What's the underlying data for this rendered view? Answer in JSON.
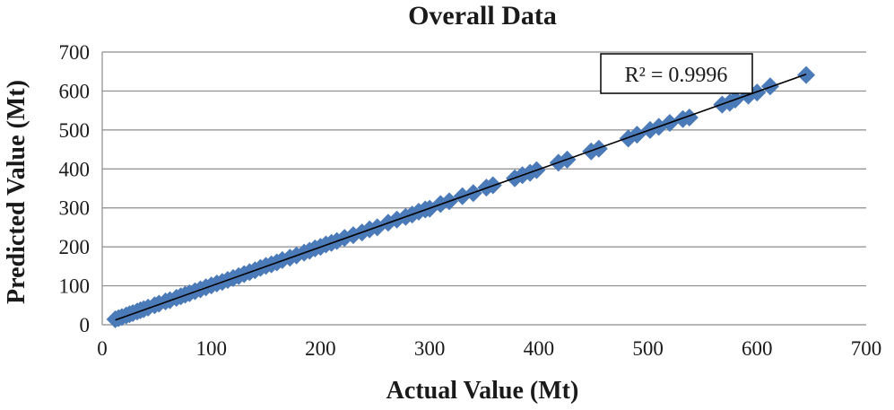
{
  "chart_data": {
    "type": "scatter",
    "title": "Overall Data",
    "xlabel": "Actual Value (Mt)",
    "ylabel": "Predicted Value (Mt)",
    "xlim": [
      0,
      700
    ],
    "ylim": [
      0,
      700
    ],
    "x_ticks": [
      0,
      100,
      200,
      300,
      400,
      500,
      600,
      700
    ],
    "y_ticks": [
      0,
      100,
      200,
      300,
      400,
      500,
      600,
      700
    ],
    "grid": "horizontal",
    "annotation": "R² = 0.9996",
    "trendline": {
      "x": [
        12,
        645
      ],
      "y": [
        12,
        643
      ]
    },
    "marker_color": "#4a7ab8",
    "series": [
      {
        "x": [
          12,
          15,
          18,
          22,
          25,
          28,
          32,
          35,
          38,
          42,
          48,
          52,
          58,
          62,
          68,
          72,
          76,
          80,
          85,
          90,
          95,
          100,
          105,
          110,
          115,
          120,
          125,
          130,
          135,
          140,
          145,
          150,
          155,
          160,
          165,
          172,
          178,
          185,
          190,
          195,
          200,
          205,
          210,
          215,
          222,
          230,
          238,
          245,
          252,
          262,
          270,
          278,
          284,
          290,
          296,
          300,
          310,
          318,
          330,
          340,
          352,
          358,
          378,
          385,
          392,
          398,
          418,
          426,
          448,
          455,
          482,
          490,
          502,
          510,
          520,
          532,
          538,
          568,
          575,
          580,
          592,
          600,
          612,
          645
        ],
        "y": [
          14,
          17,
          20,
          24,
          27,
          30,
          34,
          37,
          40,
          44,
          50,
          54,
          60,
          63,
          69,
          73,
          77,
          81,
          86,
          91,
          96,
          101,
          106,
          110,
          115,
          120,
          125,
          130,
          135,
          140,
          146,
          151,
          155,
          160,
          166,
          172,
          178,
          185,
          190,
          196,
          200,
          206,
          210,
          215,
          223,
          230,
          237,
          245,
          250,
          262,
          270,
          277,
          283,
          290,
          296,
          298,
          310,
          317,
          330,
          338,
          352,
          358,
          376,
          384,
          390,
          397,
          416,
          424,
          445,
          452,
          478,
          488,
          500,
          508,
          518,
          528,
          532,
          565,
          570,
          578,
          588,
          596,
          612,
          641
        ]
      }
    ]
  }
}
